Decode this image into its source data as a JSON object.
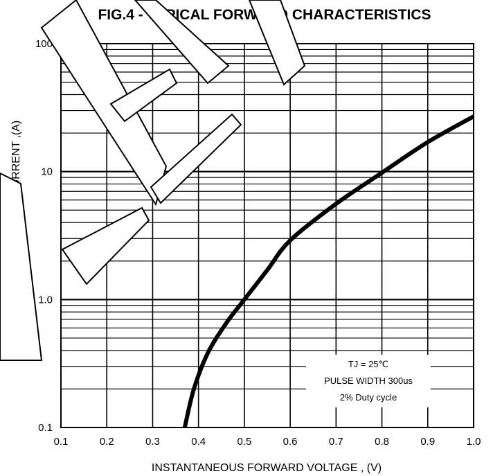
{
  "chart_data": {
    "type": "line",
    "title": "FIG.4 - TYPICAL FORWARD CHARACTERISTICS",
    "xlabel": "INSTANTANEOUS FORWARD VOLTAGE , (V)",
    "ylabel": "INSTANTANEOUS  FORWARD CURRENT ,(A)",
    "xlim": [
      0.1,
      1.0
    ],
    "ylim": [
      0.1,
      100
    ],
    "y_scale": "log",
    "grid": true,
    "x_ticks": [
      "0.1",
      "0.2",
      "0.3",
      "0.4",
      "0.5",
      "0.6",
      "0.7",
      "0.8",
      "0.9",
      "1.0"
    ],
    "y_ticks": [
      {
        "value": 0.1,
        "label": "0.1"
      },
      {
        "value": 1,
        "label": "1.0"
      },
      {
        "value": 10,
        "label": "10"
      },
      {
        "value": 100,
        "label": "100"
      }
    ],
    "series": [
      {
        "x": [
          0.37,
          0.39,
          0.42,
          0.46,
          0.5,
          0.55,
          0.6,
          0.7,
          0.8,
          0.9,
          1.0
        ],
        "y": [
          0.1,
          0.2,
          0.38,
          0.65,
          1.0,
          1.7,
          2.9,
          5.6,
          9.8,
          17,
          27
        ],
        "color": "#000000"
      }
    ],
    "annotations": [
      "TJ = 25℃",
      "PULSE WIDTH 300us",
      "2% Duty cycle"
    ]
  }
}
